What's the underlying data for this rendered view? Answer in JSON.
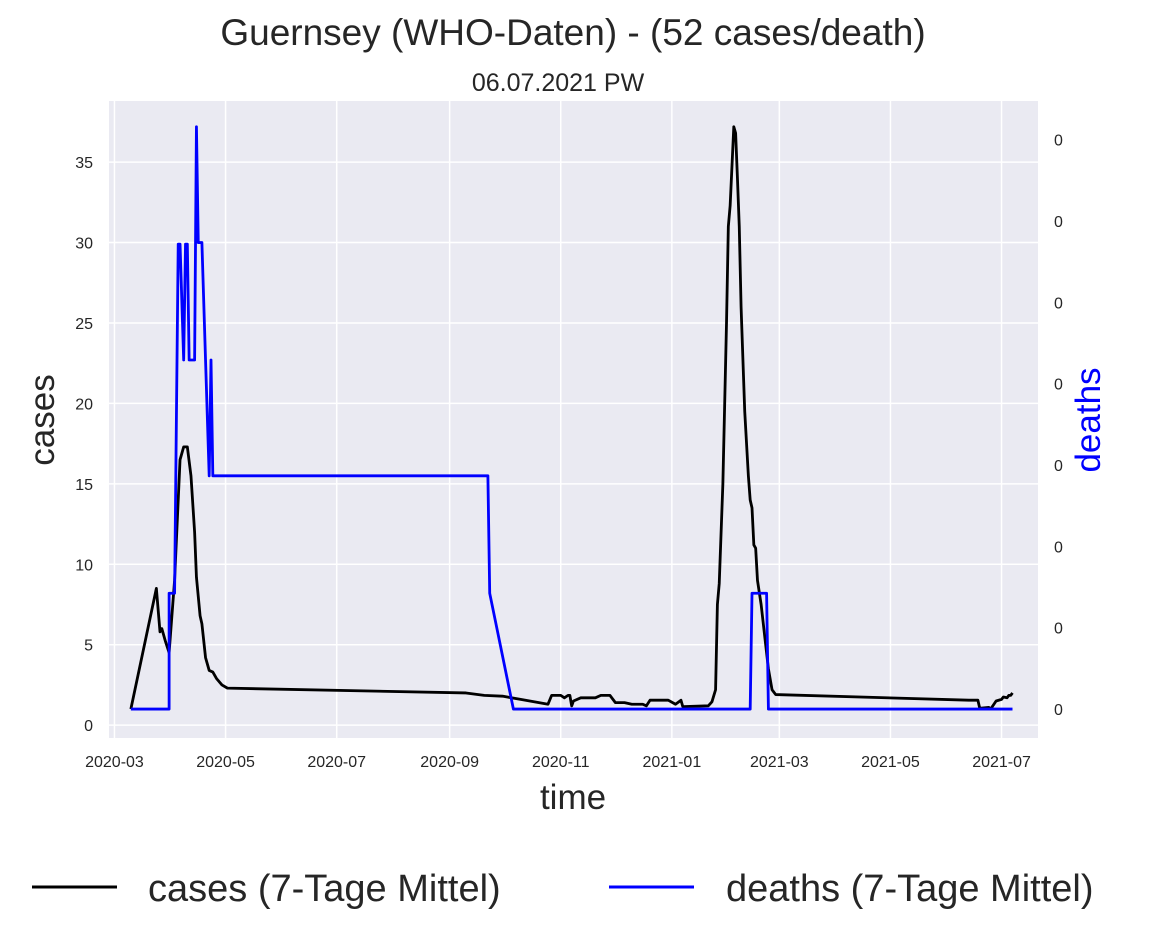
{
  "chart_data": {
    "type": "line",
    "title": "Guernsey (WHO-Daten) - (52 cases/death)",
    "subtitle": "06.07.2021 PW",
    "xlabel": "time",
    "ylabel": "cases",
    "y2label": "deaths",
    "grid": true,
    "legend_position": "bottom-outside",
    "colors": {
      "background": "#eaeaf2",
      "grid": "#ffffff",
      "cases": "#000000",
      "deaths": "#0000ff",
      "y2label": "#0000ff",
      "text": "#262626"
    },
    "x_ticks": [
      "2020-03",
      "2020-05",
      "2020-07",
      "2020-09",
      "2020-11",
      "2021-01",
      "2021-03",
      "2021-05",
      "2021-07"
    ],
    "y_ticks": [
      "0",
      "5",
      "10",
      "15",
      "20",
      "25",
      "30",
      "35"
    ],
    "y2_ticks": [
      "0",
      "0",
      "0",
      "0",
      "0",
      "0",
      "0",
      "0"
    ],
    "y_range": [
      -0.8,
      38.8
    ],
    "x_range": [
      "2020-02-27",
      "2021-07-21"
    ],
    "series": [
      {
        "name": "cases (7-Tage Mittel)",
        "color": "#000000",
        "points": [
          [
            "2020-03-10",
            1.0
          ],
          [
            "2020-03-24",
            8.5
          ],
          [
            "2020-03-26",
            5.8
          ],
          [
            "2020-03-27",
            6.0
          ],
          [
            "2020-03-29",
            5.2
          ],
          [
            "2020-03-31",
            4.5
          ],
          [
            "2020-04-03",
            9.0
          ],
          [
            "2020-04-06",
            16.5
          ],
          [
            "2020-04-08",
            17.3
          ],
          [
            "2020-04-10",
            17.3
          ],
          [
            "2020-04-12",
            15.5
          ],
          [
            "2020-04-14",
            12.0
          ],
          [
            "2020-04-15",
            9.2
          ],
          [
            "2020-04-17",
            6.8
          ],
          [
            "2020-04-18",
            6.3
          ],
          [
            "2020-04-20",
            4.2
          ],
          [
            "2020-04-22",
            3.4
          ],
          [
            "2020-04-24",
            3.3
          ],
          [
            "2020-04-26",
            2.9
          ],
          [
            "2020-04-29",
            2.5
          ],
          [
            "2020-05-02",
            2.3
          ],
          [
            "2020-09-10",
            2.0
          ],
          [
            "2020-09-20",
            1.85
          ],
          [
            "2020-09-30",
            1.8
          ],
          [
            "2020-10-10",
            1.6
          ],
          [
            "2020-10-25",
            1.3
          ],
          [
            "2020-10-27",
            1.85
          ],
          [
            "2020-11-01",
            1.85
          ],
          [
            "2020-11-03",
            1.7
          ],
          [
            "2020-11-05",
            1.85
          ],
          [
            "2020-11-06",
            1.85
          ],
          [
            "2020-11-07",
            1.2
          ],
          [
            "2020-11-08",
            1.5
          ],
          [
            "2020-11-12",
            1.7
          ],
          [
            "2020-11-20",
            1.7
          ],
          [
            "2020-11-23",
            1.85
          ],
          [
            "2020-11-28",
            1.85
          ],
          [
            "2020-12-01",
            1.4
          ],
          [
            "2020-12-06",
            1.4
          ],
          [
            "2020-12-10",
            1.3
          ],
          [
            "2020-12-16",
            1.3
          ],
          [
            "2020-12-18",
            1.2
          ],
          [
            "2020-12-20",
            1.55
          ],
          [
            "2020-12-30",
            1.55
          ],
          [
            "2021-01-03",
            1.3
          ],
          [
            "2021-01-06",
            1.55
          ],
          [
            "2021-01-07",
            1.15
          ],
          [
            "2021-01-21",
            1.2
          ],
          [
            "2021-01-23",
            1.45
          ],
          [
            "2021-01-25",
            2.2
          ],
          [
            "2021-01-26",
            7.5
          ],
          [
            "2021-01-27",
            8.8
          ],
          [
            "2021-01-29",
            15.0
          ],
          [
            "2021-01-31",
            25.0
          ],
          [
            "2021-02-01",
            31.0
          ],
          [
            "2021-02-02",
            32.3
          ],
          [
            "2021-02-04",
            37.2
          ],
          [
            "2021-02-05",
            36.8
          ],
          [
            "2021-02-06",
            34.0
          ],
          [
            "2021-02-07",
            31.0
          ],
          [
            "2021-02-08",
            26.0
          ],
          [
            "2021-02-10",
            19.5
          ],
          [
            "2021-02-12",
            15.5
          ],
          [
            "2021-02-13",
            14.0
          ],
          [
            "2021-02-14",
            13.5
          ],
          [
            "2021-02-15",
            11.2
          ],
          [
            "2021-02-16",
            11.0
          ],
          [
            "2021-02-17",
            9.0
          ],
          [
            "2021-02-19",
            7.5
          ],
          [
            "2021-02-21",
            5.5
          ],
          [
            "2021-02-23",
            3.5
          ],
          [
            "2021-02-25",
            2.2
          ],
          [
            "2021-02-27",
            1.9
          ],
          [
            "2021-06-13",
            1.55
          ],
          [
            "2021-06-18",
            1.55
          ],
          [
            "2021-06-19",
            1.05
          ],
          [
            "2021-06-24",
            1.1
          ],
          [
            "2021-06-25",
            1.0
          ],
          [
            "2021-06-28",
            1.5
          ],
          [
            "2021-07-01",
            1.6
          ],
          [
            "2021-07-02",
            1.75
          ],
          [
            "2021-07-04",
            1.7
          ],
          [
            "2021-07-05",
            1.85
          ],
          [
            "2021-07-06",
            1.85
          ],
          [
            "2021-07-07",
            2.0
          ]
        ]
      },
      {
        "name": "deaths (7-Tage Mittel)",
        "color": "#0000ff",
        "points": [
          [
            "2020-03-10",
            1.0
          ],
          [
            "2020-03-31",
            1.0
          ],
          [
            "2020-03-31",
            8.2
          ],
          [
            "2020-04-03",
            8.2
          ],
          [
            "2020-04-05",
            29.9
          ],
          [
            "2020-04-06",
            29.9
          ],
          [
            "2020-04-08",
            22.7
          ],
          [
            "2020-04-09",
            29.9
          ],
          [
            "2020-04-10",
            29.9
          ],
          [
            "2020-04-11",
            22.7
          ],
          [
            "2020-04-14",
            22.7
          ],
          [
            "2020-04-15",
            37.2
          ],
          [
            "2020-04-16",
            30.0
          ],
          [
            "2020-04-18",
            30.0
          ],
          [
            "2020-04-20",
            22.7
          ],
          [
            "2020-04-22",
            15.5
          ],
          [
            "2020-04-23",
            22.7
          ],
          [
            "2020-04-24",
            15.5
          ],
          [
            "2020-09-22",
            15.5
          ],
          [
            "2020-09-23",
            8.2
          ],
          [
            "2020-10-06",
            1.0
          ],
          [
            "2021-02-13",
            1.0
          ],
          [
            "2021-02-14",
            8.2
          ],
          [
            "2021-02-22",
            8.2
          ],
          [
            "2021-02-23",
            1.0
          ],
          [
            "2021-07-07",
            1.0
          ]
        ]
      }
    ]
  }
}
